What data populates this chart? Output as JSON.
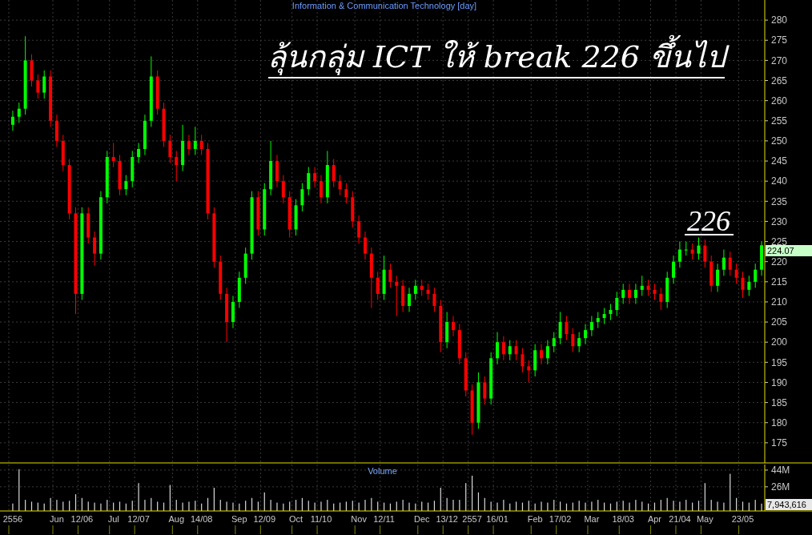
{
  "chart_data": [
    {
      "type": "candlestick",
      "title": "Information & Communication Technology [day]",
      "categories": [
        "2556",
        null,
        null,
        null,
        null,
        null,
        null,
        "Jun",
        null,
        null,
        null,
        "12/06",
        null,
        null,
        null,
        null,
        "Jul",
        null,
        null,
        null,
        "12/07",
        null,
        null,
        null,
        null,
        null,
        "Aug",
        null,
        null,
        null,
        "14/08",
        null,
        null,
        null,
        null,
        null,
        "Sep",
        null,
        null,
        null,
        "12/09",
        null,
        null,
        null,
        null,
        "Oct",
        null,
        null,
        null,
        "11/10",
        null,
        null,
        null,
        null,
        null,
        "Nov",
        null,
        null,
        null,
        "12/11",
        null,
        null,
        null,
        null,
        null,
        "Dec",
        null,
        null,
        null,
        "13/12",
        null,
        null,
        null,
        "2557",
        null,
        null,
        null,
        "16/01",
        null,
        null,
        null,
        null,
        null,
        "Feb",
        null,
        null,
        null,
        "17/02",
        null,
        null,
        null,
        null,
        "Mar",
        null,
        null,
        null,
        null,
        "18/03",
        null,
        null,
        null,
        null,
        "Apr",
        null,
        null,
        null,
        "21/04",
        null,
        null,
        null,
        "May",
        null,
        null,
        null,
        null,
        null,
        "23/05",
        null,
        null,
        null
      ],
      "ohlc": [
        [
          254,
          257.5,
          252.5,
          256
        ],
        [
          256,
          259.5,
          254.5,
          258
        ],
        [
          258,
          276,
          256.5,
          270
        ],
        [
          270,
          271.5,
          263.5,
          265
        ],
        [
          265,
          266.5,
          260.5,
          262
        ],
        [
          262,
          267.5,
          260.5,
          266
        ],
        [
          266,
          267.5,
          253.5,
          255
        ],
        [
          255,
          256.5,
          248.5,
          250
        ],
        [
          250,
          251.5,
          242.5,
          244
        ],
        [
          244,
          245.5,
          230.5,
          232
        ],
        [
          232,
          233.5,
          207,
          212
        ],
        [
          212,
          233.5,
          210.5,
          232
        ],
        [
          232,
          233.5,
          224.5,
          226
        ],
        [
          226,
          227.5,
          219,
          222
        ],
        [
          222,
          237.5,
          220.5,
          236
        ],
        [
          236,
          247.5,
          234.5,
          246
        ],
        [
          246,
          249.5,
          243.5,
          245
        ],
        [
          245,
          246.5,
          236.5,
          238
        ],
        [
          238,
          241.5,
          236.5,
          240
        ],
        [
          240,
          247.5,
          238.5,
          246
        ],
        [
          246,
          249.5,
          244.5,
          248
        ],
        [
          248,
          256.5,
          246.5,
          255
        ],
        [
          255,
          271,
          253.5,
          266
        ],
        [
          266,
          267.5,
          256.5,
          258
        ],
        [
          258,
          259.5,
          248.5,
          250
        ],
        [
          250,
          251.5,
          244.5,
          246
        ],
        [
          246,
          247.5,
          240,
          244
        ],
        [
          244,
          254,
          242.5,
          250
        ],
        [
          250,
          251.5,
          246.5,
          248
        ],
        [
          248,
          253.5,
          246.5,
          250
        ],
        [
          250,
          251.5,
          246.5,
          248
        ],
        [
          248,
          249.5,
          230.5,
          232
        ],
        [
          232,
          233.5,
          218.5,
          220
        ],
        [
          220,
          221.5,
          210.5,
          212
        ],
        [
          212,
          213.5,
          200,
          205
        ],
        [
          205,
          211.5,
          203.5,
          210
        ],
        [
          210,
          217.5,
          208.5,
          216
        ],
        [
          216,
          223.5,
          214.5,
          222
        ],
        [
          222,
          237.5,
          220.5,
          236
        ],
        [
          236,
          237.5,
          226.5,
          228
        ],
        [
          228,
          239.5,
          226.5,
          238
        ],
        [
          238,
          250,
          236.5,
          245
        ],
        [
          245,
          246.5,
          238.5,
          240
        ],
        [
          240,
          241.5,
          234.5,
          236
        ],
        [
          236,
          237.5,
          226,
          228
        ],
        [
          228,
          235.5,
          226.5,
          234
        ],
        [
          234,
          239.5,
          232.5,
          238
        ],
        [
          238,
          243.5,
          236.5,
          242
        ],
        [
          242,
          243.5,
          238.5,
          240
        ],
        [
          240,
          241.5,
          234.5,
          236
        ],
        [
          236,
          247.5,
          234.5,
          244
        ],
        [
          244,
          245.5,
          238.5,
          240
        ],
        [
          240,
          241.5,
          236.5,
          238
        ],
        [
          238,
          239.5,
          234.5,
          236
        ],
        [
          236,
          237.5,
          228.5,
          230
        ],
        [
          230,
          231.5,
          224.5,
          226
        ],
        [
          226,
          227.5,
          220.5,
          222
        ],
        [
          222,
          223.5,
          208.5,
          216
        ],
        [
          216,
          217.5,
          210.5,
          212
        ],
        [
          212,
          221.5,
          210.5,
          218
        ],
        [
          218,
          219.5,
          213.5,
          215
        ],
        [
          215,
          216.5,
          206.5,
          214
        ],
        [
          214,
          215.5,
          207.5,
          209
        ],
        [
          209,
          213.5,
          207.5,
          212
        ],
        [
          212,
          215.5,
          210.5,
          214
        ],
        [
          214,
          215.5,
          211.5,
          213
        ],
        [
          213,
          214.5,
          210.5,
          212
        ],
        [
          212,
          213.5,
          207.5,
          209
        ],
        [
          209,
          210.5,
          197.5,
          200
        ],
        [
          200,
          207.5,
          198.5,
          205
        ],
        [
          205,
          206.5,
          201.5,
          203
        ],
        [
          203,
          204.5,
          194.5,
          196
        ],
        [
          196,
          197.5,
          186.5,
          188
        ],
        [
          188,
          189.5,
          177,
          180
        ],
        [
          180,
          192.5,
          178.5,
          190
        ],
        [
          190,
          191.5,
          184.5,
          186
        ],
        [
          186,
          197.5,
          184.5,
          196
        ],
        [
          196,
          202.5,
          194.5,
          200
        ],
        [
          200,
          201.5,
          195.5,
          197
        ],
        [
          197,
          200.5,
          195.5,
          199
        ],
        [
          199,
          200.5,
          195.5,
          197
        ],
        [
          197,
          198.5,
          192.5,
          194
        ],
        [
          194,
          195.5,
          190,
          193
        ],
        [
          193,
          199.5,
          191.5,
          198
        ],
        [
          198,
          199.5,
          194.5,
          196
        ],
        [
          196,
          200.5,
          194.5,
          199
        ],
        [
          199,
          202.5,
          197.5,
          201
        ],
        [
          201,
          207.5,
          199.5,
          205
        ],
        [
          205,
          206.5,
          200.5,
          202
        ],
        [
          202,
          203.5,
          197.5,
          199
        ],
        [
          199,
          202.5,
          197.5,
          201
        ],
        [
          201,
          204.5,
          199.5,
          203
        ],
        [
          203,
          206.5,
          201.5,
          205
        ],
        [
          205,
          207.5,
          203.5,
          206
        ],
        [
          206,
          208.5,
          204.5,
          207
        ],
        [
          207,
          209.5,
          205.5,
          208
        ],
        [
          208,
          212.5,
          206.5,
          211
        ],
        [
          211,
          214.5,
          209.5,
          213
        ],
        [
          213,
          214.5,
          209.5,
          211
        ],
        [
          211,
          214.5,
          209.5,
          213
        ],
        [
          213,
          216.5,
          211.5,
          214
        ],
        [
          214,
          215.5,
          211.5,
          213
        ],
        [
          213,
          214.5,
          210.5,
          212
        ],
        [
          212,
          213.5,
          208,
          210
        ],
        [
          210,
          217.5,
          208.5,
          216
        ],
        [
          216,
          221.5,
          214.5,
          220
        ],
        [
          220,
          225,
          218.5,
          223
        ],
        [
          223,
          225,
          221.5,
          223
        ],
        [
          223,
          224.5,
          220.5,
          222
        ],
        [
          222,
          226,
          220.5,
          224
        ],
        [
          224,
          225.5,
          218.5,
          220
        ],
        [
          220,
          221.5,
          212.5,
          214
        ],
        [
          214,
          219.5,
          212.5,
          218
        ],
        [
          218,
          223,
          216.5,
          221
        ],
        [
          221,
          222.5,
          216.5,
          218
        ],
        [
          218,
          219.5,
          214.5,
          216
        ],
        [
          216,
          217.5,
          211,
          213
        ],
        [
          213,
          216.5,
          211.5,
          215
        ],
        [
          215,
          219.5,
          213.5,
          218
        ],
        [
          218,
          225,
          216.5,
          224.07
        ]
      ],
      "colors": [
        "#00ff00",
        "#00ff00",
        "#00ff00",
        "#ff0000",
        "#ff0000",
        "#00ff00",
        "#ff0000",
        "#ff0000",
        "#ff0000",
        "#ff0000",
        "#ff0000",
        "#00ff00",
        "#ff0000",
        "#ff0000",
        "#00ff00",
        "#00ff00",
        "#ff0000",
        "#ff0000",
        "#00ff00",
        "#00ff00",
        "#00ff00",
        "#00ff00",
        "#00ff00",
        "#ff0000",
        "#ff0000",
        "#ff0000",
        "#ff0000",
        "#00ff00",
        "#ff0000",
        "#00ff00",
        "#ff0000",
        "#ff0000",
        "#ff0000",
        "#ff0000",
        "#ff0000",
        "#00ff00",
        "#00ff00",
        "#00ff00",
        "#00ff00",
        "#ff0000",
        "#00ff00",
        "#00ff00",
        "#ff0000",
        "#ff0000",
        "#ff0000",
        "#00ff00",
        "#00ff00",
        "#00ff00",
        "#ff0000",
        "#ff0000",
        "#00ff00",
        "#ff0000",
        "#ff0000",
        "#ff0000",
        "#ff0000",
        "#ff0000",
        "#ff0000",
        "#ff0000",
        "#ff0000",
        "#00ff00",
        "#ff0000",
        "#ff0000",
        "#ff0000",
        "#00ff00",
        "#00ff00",
        "#ff0000",
        "#ff0000",
        "#ff0000",
        "#ff0000",
        "#00ff00",
        "#ff0000",
        "#ff0000",
        "#ff0000",
        "#ff0000",
        "#00ff00",
        "#ff0000",
        "#00ff00",
        "#00ff00",
        "#ff0000",
        "#00ff00",
        "#ff0000",
        "#ff0000",
        "#ff0000",
        "#00ff00",
        "#ff0000",
        "#00ff00",
        "#00ff00",
        "#00ff00",
        "#ff0000",
        "#ff0000",
        "#00ff00",
        "#00ff00",
        "#00ff00",
        "#00ff00",
        "#00ff00",
        "#00ff00",
        "#00ff00",
        "#00ff00",
        "#ff0000",
        "#00ff00",
        "#00ff00",
        "#ff0000",
        "#ff0000",
        "#ff0000",
        "#00ff00",
        "#00ff00",
        "#00ff00",
        "#00ff00",
        "#ff0000",
        "#00ff00",
        "#ff0000",
        "#ff0000",
        "#00ff00",
        "#00ff00",
        "#ff0000",
        "#ff0000",
        "#ff0000",
        "#00ff00",
        "#00ff00",
        "#00ff00"
      ],
      "ylim": [
        170,
        285
      ],
      "yticks": [
        175,
        180,
        185,
        190,
        195,
        200,
        205,
        210,
        215,
        220,
        225,
        230,
        235,
        240,
        245,
        250,
        255,
        260,
        265,
        270,
        275,
        280
      ],
      "grid": true,
      "annotations": [
        {
          "text": "ลุ้นกลุ่ม ICT ให้ break 226 ขึ้นไป"
        },
        "226",
        "224.07"
      ]
    },
    {
      "type": "bar",
      "title": "Volume",
      "categories": [
        null,
        null,
        null,
        null,
        null,
        null,
        null,
        null,
        null,
        null,
        null,
        null,
        null,
        null,
        null,
        null,
        null,
        null,
        null,
        null,
        null,
        null,
        null,
        null,
        null,
        null,
        null,
        null,
        null,
        null,
        null,
        null,
        null,
        null,
        null,
        null,
        null,
        null,
        null,
        null,
        null,
        null,
        null,
        null,
        null,
        null,
        null,
        null,
        null,
        null,
        null,
        null,
        null,
        null,
        null,
        null,
        null,
        null,
        null,
        null,
        null,
        null,
        null,
        null,
        null,
        null,
        null,
        null,
        null,
        null,
        null,
        null,
        null,
        null,
        null,
        null,
        null,
        null,
        null,
        null,
        null,
        null,
        null,
        null,
        null,
        null,
        null,
        null,
        null,
        null,
        null,
        null,
        null,
        null,
        null,
        null,
        null,
        null,
        null,
        null,
        null,
        null,
        null,
        null,
        null,
        null,
        null,
        null,
        null,
        null,
        null,
        null,
        null,
        null,
        null,
        null,
        null,
        null,
        null,
        null
      ],
      "values": [
        8,
        45,
        12,
        10,
        9,
        8,
        14,
        12,
        10,
        11,
        18,
        14,
        10,
        9,
        8,
        12,
        9,
        10,
        8,
        11,
        30,
        12,
        14,
        10,
        9,
        28,
        12,
        9,
        10,
        11,
        8,
        14,
        25,
        12,
        10,
        9,
        8,
        11,
        14,
        10,
        20,
        12,
        9,
        8,
        10,
        12,
        14,
        11,
        9,
        10,
        12,
        8,
        9,
        10,
        11,
        9,
        12,
        14,
        10,
        9,
        8,
        10,
        12,
        9,
        8,
        10,
        9,
        11,
        25,
        14,
        12,
        12,
        30,
        38,
        20,
        14,
        10,
        9,
        12,
        8,
        10,
        9,
        11,
        8,
        10,
        9,
        12,
        10,
        8,
        9,
        11,
        9,
        10,
        12,
        9,
        8,
        10,
        11,
        9,
        12,
        10,
        8,
        9,
        12,
        14,
        11,
        10,
        12,
        9,
        11,
        30,
        12,
        10,
        9,
        40,
        14,
        10,
        9,
        12,
        7.9
      ],
      "color": "#d8d8d8",
      "ylim": [
        0,
        50
      ],
      "yticks": [
        {
          "value": 26,
          "label": "26M"
        },
        {
          "value": 44,
          "label": "44M"
        }
      ],
      "grid": true,
      "annotations": [
        "7,943,616"
      ]
    }
  ]
}
